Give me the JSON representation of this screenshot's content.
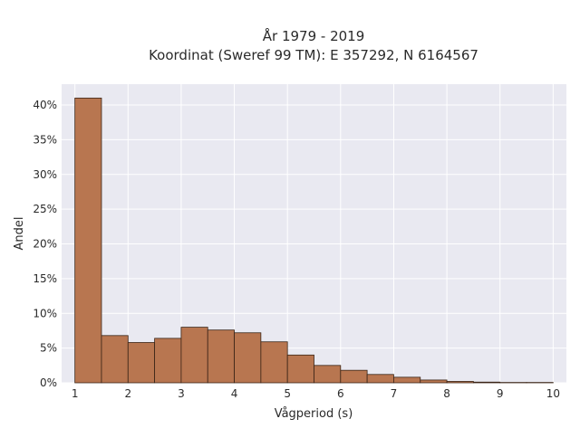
{
  "chart_data": {
    "type": "bar",
    "title": "År 1979 - 2019",
    "subtitle": "Koordinat (Sweref 99 TM): E 357292, N 6164567",
    "xlabel": "Vågperiod (s)",
    "ylabel": "Andel",
    "xlim": [
      0.75,
      10.25
    ],
    "ylim": [
      0,
      0.43
    ],
    "xticks": [
      1,
      2,
      3,
      4,
      5,
      6,
      7,
      8,
      9,
      10
    ],
    "xtick_labels": [
      "1",
      "2",
      "3",
      "4",
      "5",
      "6",
      "7",
      "8",
      "9",
      "10"
    ],
    "yticks": [
      0,
      0.05,
      0.1,
      0.15,
      0.2,
      0.25,
      0.3,
      0.35,
      0.4
    ],
    "ytick_labels": [
      "0%",
      "5%",
      "10%",
      "15%",
      "20%",
      "25%",
      "30%",
      "35%",
      "40%"
    ],
    "bin_width": 0.5,
    "bins": [
      {
        "x0": 1.0,
        "value": 0.41
      },
      {
        "x0": 1.5,
        "value": 0.068
      },
      {
        "x0": 2.0,
        "value": 0.058
      },
      {
        "x0": 2.5,
        "value": 0.064
      },
      {
        "x0": 3.0,
        "value": 0.08
      },
      {
        "x0": 3.5,
        "value": 0.076
      },
      {
        "x0": 4.0,
        "value": 0.072
      },
      {
        "x0": 4.5,
        "value": 0.059
      },
      {
        "x0": 5.0,
        "value": 0.04
      },
      {
        "x0": 5.5,
        "value": 0.025
      },
      {
        "x0": 6.0,
        "value": 0.018
      },
      {
        "x0": 6.5,
        "value": 0.012
      },
      {
        "x0": 7.0,
        "value": 0.008
      },
      {
        "x0": 7.5,
        "value": 0.004
      },
      {
        "x0": 8.0,
        "value": 0.002
      },
      {
        "x0": 8.5,
        "value": 0.001
      },
      {
        "x0": 9.0,
        "value": 0.0005
      },
      {
        "x0": 9.5,
        "value": 0.0005
      }
    ],
    "grid": true,
    "legend": "none",
    "colors": {
      "bar_fill": "#b87650",
      "bar_edge": "#3a2416",
      "plot_background": "#e9e9f1",
      "grid": "#ffffff"
    }
  }
}
